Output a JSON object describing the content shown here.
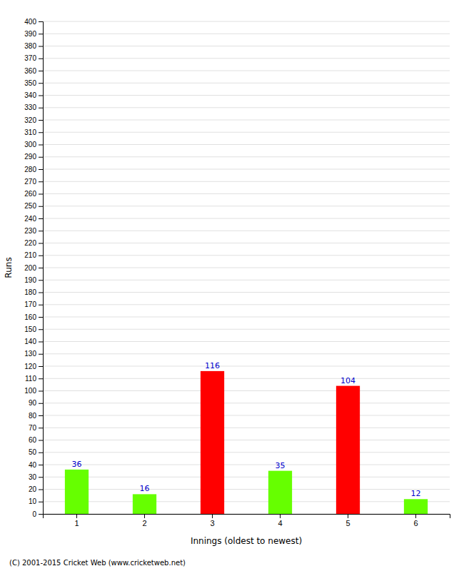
{
  "chart_data": {
    "type": "bar",
    "categories": [
      "1",
      "2",
      "3",
      "4",
      "5",
      "6"
    ],
    "values": [
      36,
      16,
      116,
      35,
      104,
      12
    ],
    "colors": [
      "#66ff00",
      "#66ff00",
      "#ff0000",
      "#66ff00",
      "#ff0000",
      "#66ff00"
    ],
    "xlabel": "Innings (oldest to newest)",
    "ylabel": "Runs",
    "ylim": [
      0,
      400
    ],
    "yticks": [
      0,
      10,
      20,
      30,
      40,
      50,
      60,
      70,
      80,
      90,
      100,
      110,
      120,
      130,
      140,
      150,
      160,
      170,
      180,
      190,
      200,
      210,
      220,
      230,
      240,
      250,
      260,
      270,
      280,
      290,
      300,
      310,
      320,
      330,
      340,
      350,
      360,
      370,
      380,
      390,
      400
    ],
    "grid": true,
    "data_labels": true,
    "annotations": [
      "(C) 2001-2015 Cricket Web (www.cricketweb.net)"
    ]
  }
}
